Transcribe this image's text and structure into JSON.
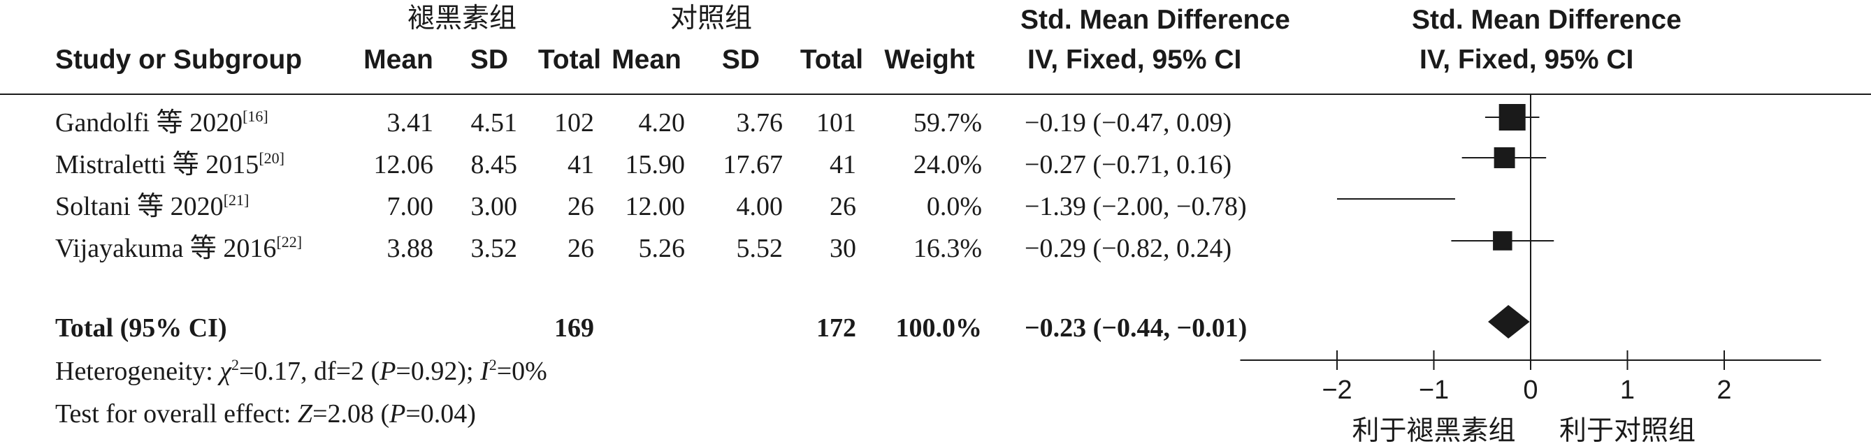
{
  "header": {
    "group_treat": "褪黑素组",
    "group_ctrl": "对照组",
    "study": "Study or Subgroup",
    "mean1": "Mean",
    "sd1": "SD",
    "total1": "Total",
    "mean2": "Mean",
    "sd2": "SD",
    "total2": "Total",
    "weight": "Weight",
    "smd1": "Std. Mean Difference",
    "smd1_sub": "IV, Fixed, 95% CI",
    "smd2": "Std. Mean Difference",
    "smd2_sub": "IV, Fixed, 95% CI"
  },
  "studies": [
    {
      "name": "Gandolfi 等 2020",
      "ref": "[16]",
      "mean1": "3.41",
      "sd1": "4.51",
      "n1": "102",
      "mean2": "4.20",
      "sd2": "3.76",
      "n2": "101",
      "weight": "59.7%",
      "ci": "−0.19 (−0.47, 0.09)"
    },
    {
      "name": "Mistraletti 等 2015",
      "ref": "[20]",
      "mean1": "12.06",
      "sd1": "8.45",
      "n1": "41",
      "mean2": "15.90",
      "sd2": "17.67",
      "n2": "41",
      "weight": "24.0%",
      "ci": "−0.27 (−0.71, 0.16)"
    },
    {
      "name": "Soltani 等 2020",
      "ref": "[21]",
      "mean1": "7.00",
      "sd1": "3.00",
      "n1": "26",
      "mean2": "12.00",
      "sd2": "4.00",
      "n2": "26",
      "weight": "0.0%",
      "ci": "−1.39 (−2.00, −0.78)"
    },
    {
      "name": "Vijayakuma 等 2016",
      "ref": "[22]",
      "mean1": "3.88",
      "sd1": "3.52",
      "n1": "26",
      "mean2": "5.26",
      "sd2": "5.52",
      "n2": "30",
      "weight": "16.3%",
      "ci": "−0.29 (−0.82, 0.24)"
    }
  ],
  "total": {
    "label": "Total (95% CI)",
    "n1": "169",
    "n2": "172",
    "weight": "100.0%",
    "ci": "−0.23 (−0.44, −0.01)"
  },
  "heterogeneity": {
    "prefix": "Heterogeneity: ",
    "chi": "χ",
    "chi_sq": "2",
    "chi_val": "=0.17, df=2 (",
    "p": "P",
    "p_val": "=0.92); ",
    "i": "I",
    "i_sq": "2",
    "i_val": "=0%"
  },
  "overall": {
    "prefix": "Test for overall effect: ",
    "z": "Z",
    "z_val": "=2.08 (",
    "p": "P",
    "p_val": "=0.04)"
  },
  "axis": {
    "favours_left": "利于褪黑素组",
    "favours_right": "利于对照组"
  },
  "chart_data": {
    "type": "forest",
    "title": "Std. Mean Difference IV, Fixed, 95% CI",
    "xlim": [
      -3,
      3
    ],
    "ticks": [
      -2,
      -1,
      0,
      1,
      2
    ],
    "tick_labels": [
      "−2",
      "−1",
      "0",
      "1",
      "2"
    ],
    "studies": [
      {
        "name": "Gandolfi 等 2020",
        "est": -0.19,
        "lo": -0.47,
        "hi": 0.09,
        "weight": 59.7
      },
      {
        "name": "Mistraletti 等 2015",
        "est": -0.27,
        "lo": -0.71,
        "hi": 0.16,
        "weight": 24.0
      },
      {
        "name": "Soltani 等 2020",
        "est": -1.39,
        "lo": -2.0,
        "hi": -0.78,
        "weight": 0.0
      },
      {
        "name": "Vijayakuma 等 2016",
        "est": -0.29,
        "lo": -0.82,
        "hi": 0.24,
        "weight": 16.3
      }
    ],
    "overall": {
      "est": -0.23,
      "lo": -0.44,
      "hi": -0.01
    }
  }
}
